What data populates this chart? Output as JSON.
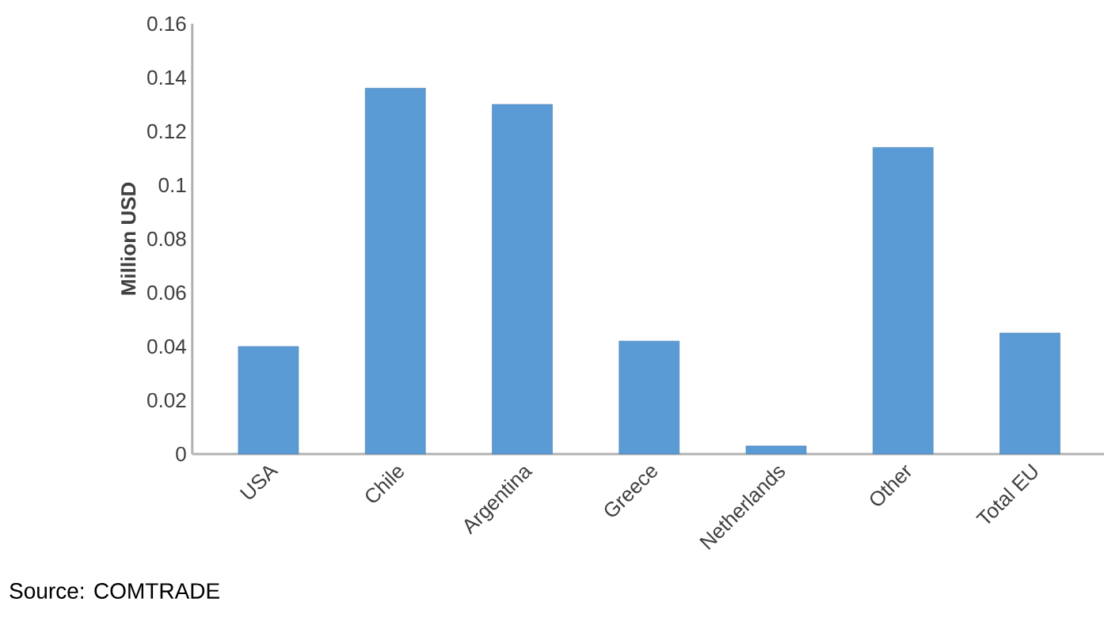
{
  "chart_data": {
    "type": "bar",
    "ylabel": "Million USD",
    "categories": [
      "USA",
      "Chile",
      "Argentina",
      "Greece",
      "Netherlands",
      "Other",
      "Total EU"
    ],
    "values": [
      0.04,
      0.136,
      0.13,
      0.042,
      0.003,
      0.114,
      0.045
    ],
    "color": "#5b9bd5",
    "ylim": [
      0,
      0.16
    ],
    "yticks": [
      0,
      0.02,
      0.04,
      0.06,
      0.08,
      0.1,
      0.12,
      0.14,
      0.16
    ],
    "annotations": [
      "Source: COMTRADE"
    ]
  }
}
